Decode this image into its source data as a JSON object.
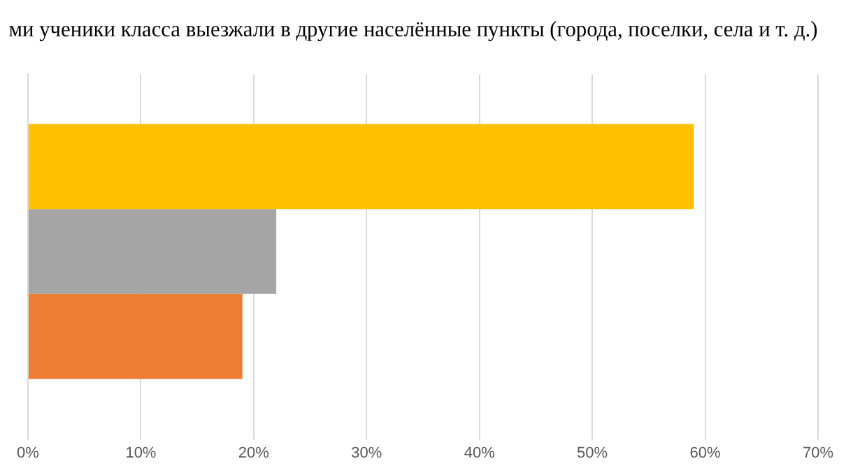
{
  "chart_data": {
    "type": "bar",
    "orientation": "horizontal",
    "title": "ми ученики класса выезжали в другие населённые пункты (города, поселки, села и т. д.)",
    "categories": [
      null
    ],
    "series": [
      {
        "color": "#ffc000",
        "values": [
          59
        ]
      },
      {
        "color": "#a5a5a5",
        "values": [
          22
        ]
      },
      {
        "color": "#ed7d31",
        "values": [
          19
        ]
      }
    ],
    "xlim": [
      0,
      70
    ],
    "xticks": [
      {
        "value": 0,
        "label": "0%"
      },
      {
        "value": 10,
        "label": "10%"
      },
      {
        "value": 20,
        "label": "20%"
      },
      {
        "value": 30,
        "label": "30%"
      },
      {
        "value": 40,
        "label": "40%"
      },
      {
        "value": 50,
        "label": "50%"
      },
      {
        "value": 60,
        "label": "60%"
      },
      {
        "value": 70,
        "label": "70%"
      }
    ],
    "grid": "x",
    "legend": false
  }
}
